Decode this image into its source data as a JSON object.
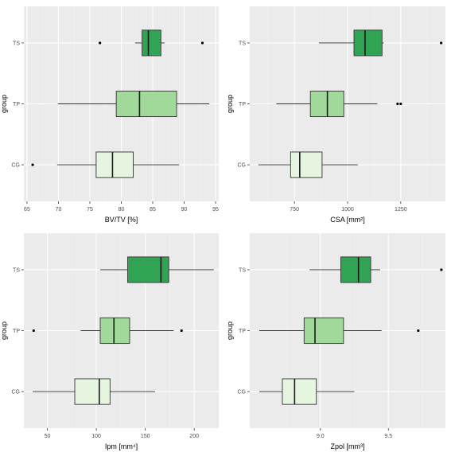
{
  "figure": {
    "background": "#ffffff",
    "panel_background": "#ebebeb",
    "grid_major": "#ffffff",
    "grid_minor": "#f2f2f2",
    "outlier_color": "#000000",
    "fill_colors": {
      "CG": "#e5f5e0",
      "TP": "#a1d99b",
      "TS": "#31a354"
    }
  },
  "chart_data": [
    {
      "type": "boxplot",
      "orientation": "horizontal",
      "xlabel": "BV/TV [%]",
      "ylabel": "group",
      "xlim": [
        64.5,
        95.5
      ],
      "xticks": [
        65,
        70,
        75,
        80,
        85,
        90,
        95
      ],
      "categories": [
        "CG",
        "TP",
        "TS"
      ],
      "boxes": [
        {
          "group": "CG",
          "whisker_low": 69.8,
          "q1": 76.0,
          "median": 78.6,
          "q3": 81.9,
          "whisker_high": 89.2,
          "outliers": [
            65.9
          ]
        },
        {
          "group": "TP",
          "whisker_low": 69.9,
          "q1": 79.2,
          "median": 82.9,
          "q3": 88.8,
          "whisker_high": 94.0,
          "outliers": []
        },
        {
          "group": "TS",
          "whisker_low": 82.2,
          "q1": 83.3,
          "median": 84.3,
          "q3": 86.3,
          "whisker_high": 86.9,
          "outliers": [
            76.6,
            92.9
          ]
        }
      ]
    },
    {
      "type": "boxplot",
      "orientation": "horizontal",
      "xlabel": "CSA [mm²]",
      "ylabel": "group",
      "xlim": [
        540,
        1460
      ],
      "xticks": [
        750,
        1000,
        1250
      ],
      "categories": [
        "CG",
        "TP",
        "TS"
      ],
      "boxes": [
        {
          "group": "CG",
          "whisker_low": 580,
          "q1": 732,
          "median": 775,
          "q3": 880,
          "whisker_high": 1048,
          "outliers": []
        },
        {
          "group": "TP",
          "whisker_low": 665,
          "q1": 825,
          "median": 905,
          "q3": 982,
          "whisker_high": 1140,
          "outliers": [
            1235,
            1250
          ]
        },
        {
          "group": "TS",
          "whisker_low": 865,
          "q1": 1030,
          "median": 1082,
          "q3": 1162,
          "whisker_high": 1170,
          "outliers": [
            1440
          ]
        }
      ]
    },
    {
      "type": "boxplot",
      "orientation": "horizontal",
      "xlabel": "Ipm [mm⁴]",
      "ylabel": "group",
      "xlim": [
        26,
        225
      ],
      "xticks": [
        50,
        100,
        150,
        200
      ],
      "categories": [
        "CG",
        "TP",
        "TS"
      ],
      "boxes": [
        {
          "group": "CG",
          "whisker_low": 35,
          "q1": 78,
          "median": 103,
          "q3": 114,
          "whisker_high": 160,
          "outliers": []
        },
        {
          "group": "TP",
          "whisker_low": 84,
          "q1": 104,
          "median": 118,
          "q3": 134,
          "whisker_high": 179,
          "outliers": [
            36,
            187
          ]
        },
        {
          "group": "TS",
          "whisker_low": 104,
          "q1": 132,
          "median": 166,
          "q3": 174,
          "whisker_high": 220,
          "outliers": []
        }
      ]
    },
    {
      "type": "boxplot",
      "orientation": "horizontal",
      "xlabel": "Zpol [mm³]",
      "ylabel": "group",
      "xlim": [
        8.48,
        9.92
      ],
      "xticks": [
        9.0,
        9.5
      ],
      "xtick_labels": [
        "9.0",
        "9.5"
      ],
      "categories": [
        "CG",
        "TP",
        "TS"
      ],
      "boxes": [
        {
          "group": "CG",
          "whisker_low": 8.55,
          "q1": 8.72,
          "median": 8.81,
          "q3": 8.97,
          "whisker_high": 9.25,
          "outliers": []
        },
        {
          "group": "TP",
          "whisker_low": 8.55,
          "q1": 8.88,
          "median": 8.96,
          "q3": 9.17,
          "whisker_high": 9.45,
          "outliers": [
            9.72
          ]
        },
        {
          "group": "TS",
          "whisker_low": 8.92,
          "q1": 9.15,
          "median": 9.28,
          "q3": 9.37,
          "whisker_high": 9.44,
          "outliers": [
            9.89
          ]
        }
      ]
    }
  ]
}
